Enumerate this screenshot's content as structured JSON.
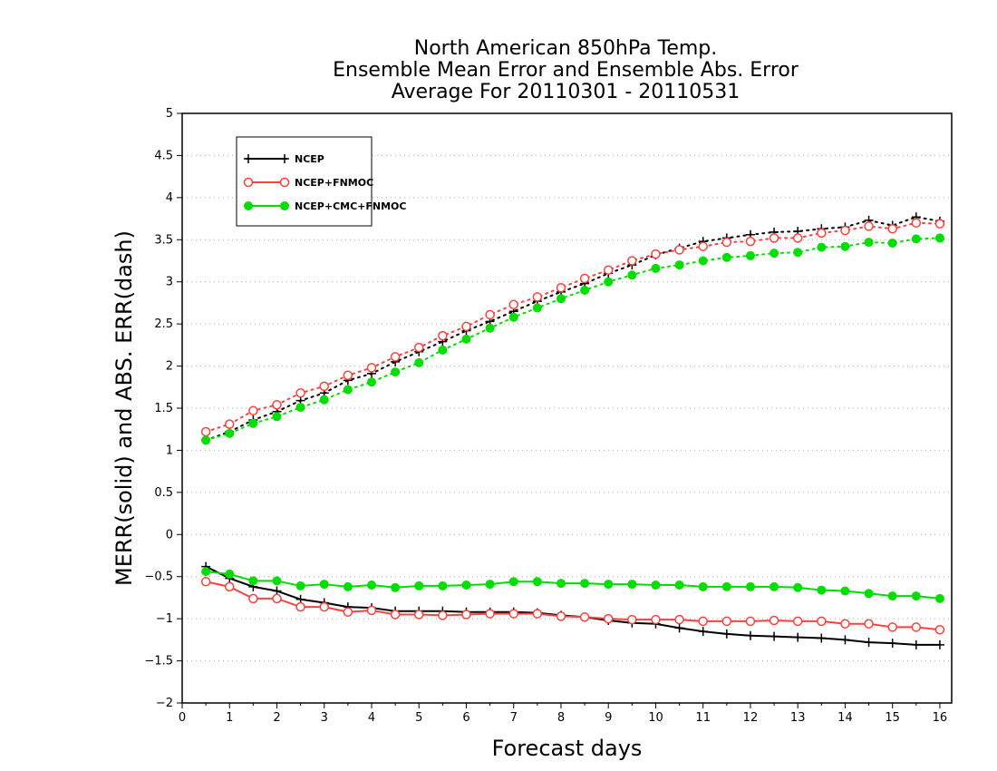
{
  "chart_data": {
    "type": "line",
    "title_lines": [
      "North American 850hPa Temp.",
      "Ensemble Mean Error and Ensemble Abs. Error",
      "Average For 20110301 - 20110531"
    ],
    "xlabel": "Forecast days",
    "ylabel": "MERR(solid) and ABS. ERR(dash)",
    "xlim": [
      0,
      16.25
    ],
    "ylim": [
      -2,
      5
    ],
    "xticks": [
      0,
      1,
      2,
      3,
      4,
      5,
      6,
      7,
      8,
      9,
      10,
      11,
      12,
      13,
      14,
      15,
      16
    ],
    "yticks": [
      -2,
      -1.5,
      -1,
      -0.5,
      0,
      0.5,
      1,
      1.5,
      2,
      2.5,
      3,
      3.5,
      4,
      4.5,
      5
    ],
    "ytick_labels": [
      "−2",
      "−1.5",
      "−1",
      "−0.5",
      "0",
      "0.5",
      "1",
      "1.5",
      "2",
      "2.5",
      "3",
      "3.5",
      "4",
      "4.5",
      "5"
    ],
    "grid": true,
    "legend_position": "top-left",
    "x": [
      0.5,
      1,
      1.5,
      2,
      2.5,
      3,
      3.5,
      4,
      4.5,
      5,
      5.5,
      6,
      6.5,
      7,
      7.5,
      8,
      8.5,
      9,
      9.5,
      10,
      10.5,
      11,
      11.5,
      12,
      12.5,
      13,
      13.5,
      14,
      14.5,
      15,
      15.5,
      16
    ],
    "series": [
      {
        "name": "NCEP",
        "color": "#000000",
        "marker": "plus",
        "merr": [
          -0.38,
          -0.52,
          -0.62,
          -0.67,
          -0.77,
          -0.81,
          -0.86,
          -0.87,
          -0.91,
          -0.91,
          -0.91,
          -0.92,
          -0.92,
          -0.92,
          -0.93,
          -0.96,
          -0.98,
          -1.02,
          -1.05,
          -1.06,
          -1.11,
          -1.15,
          -1.18,
          -1.2,
          -1.21,
          -1.22,
          -1.23,
          -1.25,
          -1.28,
          -1.29,
          -1.31,
          -1.31
        ],
        "abserr": [
          1.12,
          1.22,
          1.36,
          1.46,
          1.59,
          1.68,
          1.83,
          1.91,
          2.05,
          2.17,
          2.29,
          2.42,
          2.53,
          2.65,
          2.77,
          2.88,
          2.98,
          3.1,
          3.2,
          3.32,
          3.4,
          3.48,
          3.52,
          3.56,
          3.59,
          3.6,
          3.63,
          3.65,
          3.73,
          3.67,
          3.77,
          3.72
        ]
      },
      {
        "name": "NCEP+FNMOC",
        "color": "#ff4040",
        "marker": "circle",
        "merr": [
          -0.56,
          -0.62,
          -0.76,
          -0.76,
          -0.86,
          -0.86,
          -0.92,
          -0.9,
          -0.95,
          -0.95,
          -0.96,
          -0.95,
          -0.94,
          -0.94,
          -0.94,
          -0.97,
          -0.98,
          -1.0,
          -1.01,
          -1.01,
          -1.01,
          -1.03,
          -1.03,
          -1.03,
          -1.02,
          -1.03,
          -1.03,
          -1.06,
          -1.06,
          -1.1,
          -1.1,
          -1.13
        ],
        "abserr": [
          1.22,
          1.31,
          1.47,
          1.54,
          1.68,
          1.76,
          1.89,
          1.98,
          2.11,
          2.22,
          2.36,
          2.47,
          2.61,
          2.73,
          2.82,
          2.93,
          3.04,
          3.14,
          3.25,
          3.33,
          3.38,
          3.42,
          3.47,
          3.48,
          3.52,
          3.52,
          3.58,
          3.61,
          3.66,
          3.63,
          3.7,
          3.69
        ]
      },
      {
        "name": "NCEP+CMC+FNMOC",
        "color": "#00dd00",
        "marker": "dot",
        "merr": [
          -0.44,
          -0.47,
          -0.55,
          -0.55,
          -0.61,
          -0.59,
          -0.62,
          -0.6,
          -0.63,
          -0.61,
          -0.61,
          -0.6,
          -0.59,
          -0.56,
          -0.56,
          -0.58,
          -0.58,
          -0.59,
          -0.59,
          -0.6,
          -0.6,
          -0.62,
          -0.62,
          -0.62,
          -0.62,
          -0.63,
          -0.66,
          -0.67,
          -0.7,
          -0.73,
          -0.73,
          -0.76
        ],
        "abserr": [
          1.12,
          1.2,
          1.32,
          1.4,
          1.51,
          1.6,
          1.72,
          1.81,
          1.93,
          2.04,
          2.19,
          2.32,
          2.45,
          2.58,
          2.69,
          2.8,
          2.9,
          3.0,
          3.08,
          3.16,
          3.2,
          3.25,
          3.29,
          3.31,
          3.34,
          3.35,
          3.41,
          3.42,
          3.47,
          3.46,
          3.51,
          3.52
        ]
      }
    ]
  }
}
